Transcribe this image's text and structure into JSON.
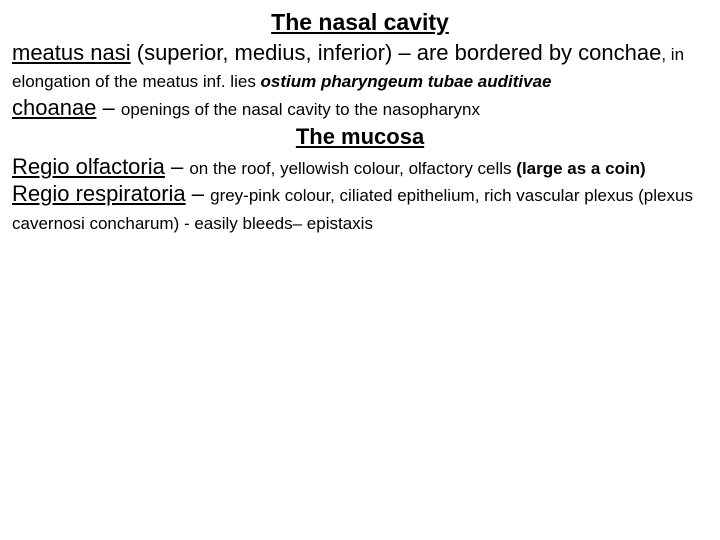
{
  "title": "The nasal cavity",
  "p1": {
    "term": "meatus nasi",
    "body": " (superior, medius, inferior) – are bordered by conchae",
    "small1": ", in elongation of the meatus inf. lies ",
    "emph": "ostium pharyngeum tubae auditivae"
  },
  "p2": {
    "term": "choanae",
    "dash": " – ",
    "body": "openings of the nasal cavity to the nasopharynx"
  },
  "subtitle": "The mucosa",
  "p3": {
    "term": "Regio olfactoria",
    "dash": " – ",
    "body": "on the roof, yellowish colour, olfactory cells ",
    "bold": "(large as a coin)"
  },
  "p4": {
    "term": "Regio respiratoria",
    "dash": " – ",
    "body1": "grey-pink colour, ciliated epithelium, rich vascular plexus (plexus cavernosi concharum) - easily bleeds– epistaxis"
  }
}
